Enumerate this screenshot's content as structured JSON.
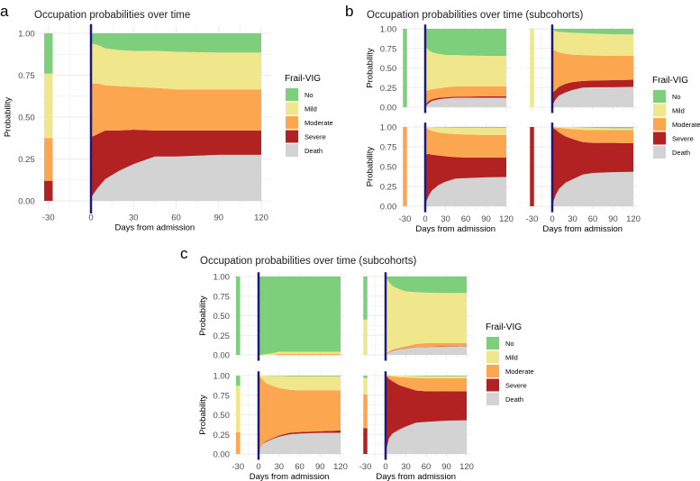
{
  "colors": {
    "No": "#7ecf7c",
    "Mild": "#f0e68c",
    "Moderate": "#fca650",
    "Severe": "#b22222",
    "Death": "#d3d3d3",
    "admission_line": "#1b1a7a",
    "grid": "#ebebeb"
  },
  "chart_data": [
    {
      "id": "a",
      "letter": "a",
      "type": "area",
      "title": "Occupation probabilities over time",
      "xlabel": "Days from admission",
      "ylabel": "Probability",
      "xticks": [
        -30,
        0,
        30,
        60,
        90,
        120
      ],
      "yticks": [
        "0.00",
        "0.25",
        "0.50",
        "0.75",
        "1.00"
      ],
      "xlim": [
        -37,
        127
      ],
      "ylim": [
        0,
        1
      ],
      "grid": true,
      "legend": {
        "title": "Frail-VIG",
        "entries": [
          "No",
          "Mild",
          "Moderate",
          "Severe",
          "Death"
        ],
        "position": "right"
      },
      "panels": [
        {
          "baseline_day": -30,
          "baseline": {
            "No": 0.24,
            "Mild": 0.385,
            "Moderate": 0.255,
            "Severe": 0.12,
            "Death": 0
          },
          "days": [
            0,
            5,
            10,
            20,
            30,
            45,
            60,
            90,
            120
          ],
          "cumulative_upper": {
            "Death": [
              0.02,
              0.08,
              0.13,
              0.18,
              0.22,
              0.265,
              0.265,
              0.275,
              0.275
            ],
            "Severe": [
              0.38,
              0.4,
              0.42,
              0.42,
              0.425,
              0.42,
              0.42,
              0.42,
              0.42
            ],
            "Moderate": [
              0.7,
              0.7,
              0.69,
              0.685,
              0.68,
              0.675,
              0.665,
              0.665,
              0.665
            ],
            "Mild": [
              0.94,
              0.93,
              0.91,
              0.9,
              0.895,
              0.895,
              0.89,
              0.885,
              0.885
            ]
          }
        }
      ]
    },
    {
      "id": "b",
      "letter": "b",
      "type": "area",
      "title": "Occupation probabilities over time (subcohorts)",
      "xlabel": "Days from admission",
      "ylabel": "Probability",
      "xticks": [
        -30,
        0,
        30,
        60,
        90,
        120
      ],
      "yticks": [
        "0.00",
        "0.25",
        "0.50",
        "0.75",
        "1.00"
      ],
      "xlim": [
        -37,
        127
      ],
      "ylim": [
        0,
        1
      ],
      "grid": true,
      "legend": {
        "title": "Frail-VIG",
        "entries": [
          "No",
          "Mild",
          "Moderate",
          "Severe",
          "Death"
        ],
        "position": "right"
      },
      "panels": [
        {
          "baseline_day": -30,
          "baseline": {
            "No": 1,
            "Mild": 0,
            "Moderate": 0,
            "Severe": 0,
            "Death": 0
          },
          "days": [
            0,
            5,
            10,
            20,
            30,
            45,
            60,
            90,
            120
          ],
          "cumulative_upper": {
            "Death": [
              0.01,
              0.05,
              0.08,
              0.1,
              0.11,
              0.12,
              0.12,
              0.12,
              0.12
            ],
            "Severe": [
              0.03,
              0.08,
              0.1,
              0.12,
              0.125,
              0.135,
              0.135,
              0.14,
              0.14
            ],
            "Moderate": [
              0.2,
              0.22,
              0.23,
              0.24,
              0.255,
              0.265,
              0.265,
              0.265,
              0.265
            ],
            "Mild": [
              0.77,
              0.73,
              0.7,
              0.68,
              0.665,
              0.665,
              0.66,
              0.655,
              0.655
            ]
          }
        },
        {
          "baseline_day": -30,
          "baseline": {
            "No": 0,
            "Mild": 1,
            "Moderate": 0,
            "Severe": 0,
            "Death": 0
          },
          "days": [
            0,
            5,
            10,
            20,
            30,
            45,
            60,
            90,
            120
          ],
          "cumulative_upper": {
            "Death": [
              0.02,
              0.1,
              0.15,
              0.19,
              0.22,
              0.25,
              0.255,
              0.255,
              0.26
            ],
            "Severe": [
              0.18,
              0.22,
              0.26,
              0.3,
              0.32,
              0.335,
              0.34,
              0.345,
              0.35
            ],
            "Moderate": [
              0.73,
              0.72,
              0.7,
              0.68,
              0.67,
              0.665,
              0.66,
              0.655,
              0.655
            ],
            "Mild": [
              0.99,
              0.97,
              0.96,
              0.955,
              0.95,
              0.945,
              0.94,
              0.93,
              0.93
            ]
          }
        },
        {
          "baseline_day": -30,
          "baseline": {
            "No": 0,
            "Mild": 0,
            "Moderate": 1,
            "Severe": 0,
            "Death": 0
          },
          "days": [
            0,
            5,
            10,
            20,
            30,
            45,
            60,
            90,
            120
          ],
          "cumulative_upper": {
            "Death": [
              0.03,
              0.13,
              0.2,
              0.27,
              0.31,
              0.35,
              0.355,
              0.365,
              0.37
            ],
            "Severe": [
              0.65,
              0.66,
              0.65,
              0.64,
              0.63,
              0.62,
              0.615,
              0.615,
              0.615
            ],
            "Moderate": [
              0.99,
              0.97,
              0.95,
              0.93,
              0.92,
              0.91,
              0.905,
              0.9,
              0.9
            ],
            "Mild": [
              1,
              1,
              1,
              0.995,
              0.995,
              0.99,
              0.99,
              0.99,
              0.99
            ]
          }
        },
        {
          "baseline_day": -30,
          "baseline": {
            "No": 0,
            "Mild": 0,
            "Moderate": 0,
            "Severe": 1,
            "Death": 0
          },
          "days": [
            0,
            5,
            10,
            20,
            30,
            45,
            60,
            90,
            120
          ],
          "cumulative_upper": {
            "Death": [
              0.02,
              0.14,
              0.22,
              0.3,
              0.34,
              0.4,
              0.42,
              0.43,
              0.435
            ],
            "Severe": [
              0.99,
              0.97,
              0.93,
              0.88,
              0.85,
              0.81,
              0.8,
              0.8,
              0.795
            ],
            "Moderate": [
              1,
              0.995,
              0.99,
              0.98,
              0.975,
              0.965,
              0.96,
              0.96,
              0.96
            ],
            "Mild": [
              1,
              1,
              1,
              1,
              1,
              0.995,
              0.99,
              0.985,
              0.985
            ]
          }
        }
      ]
    },
    {
      "id": "c",
      "letter": "c",
      "type": "area",
      "title": "Occupation probabilities over time (subcohorts)",
      "xlabel": "Days from admission",
      "ylabel": "Probability",
      "xticks": [
        -30,
        0,
        30,
        60,
        90,
        120
      ],
      "yticks": [
        "0.00",
        "0.25",
        "0.50",
        "0.75",
        "1.00"
      ],
      "xlim": [
        -37,
        127
      ],
      "ylim": [
        0,
        1
      ],
      "grid": true,
      "legend": {
        "title": "Frail-VIG",
        "entries": [
          "No",
          "Mild",
          "Moderate",
          "Severe",
          "Death"
        ],
        "position": "right"
      },
      "panels": [
        {
          "baseline_day": -30,
          "baseline": {
            "No": 1,
            "Mild": 0,
            "Moderate": 0,
            "Severe": 0,
            "Death": 0
          },
          "days": [
            0,
            5,
            10,
            20,
            30,
            45,
            60,
            90,
            120
          ],
          "cumulative_upper": {
            "Death": [
              0,
              0,
              0,
              0,
              0,
              0,
              0,
              0,
              0
            ],
            "Severe": [
              0,
              0,
              0,
              0,
              0,
              0,
              0,
              0,
              0
            ],
            "Moderate": [
              0,
              0,
              0,
              0,
              0.015,
              0.015,
              0.015,
              0.015,
              0.015
            ],
            "Mild": [
              0,
              0,
              0.01,
              0.02,
              0.04,
              0.04,
              0.04,
              0.04,
              0.04
            ]
          }
        },
        {
          "baseline_day": -30,
          "baseline": {
            "No": 0.55,
            "Mild": 0.45,
            "Moderate": 0,
            "Severe": 0,
            "Death": 0
          },
          "days": [
            0,
            5,
            10,
            20,
            30,
            45,
            60,
            90,
            120
          ],
          "cumulative_upper": {
            "Death": [
              0.01,
              0.03,
              0.05,
              0.07,
              0.08,
              0.1,
              0.1,
              0.105,
              0.11
            ],
            "Severe": [
              0.01,
              0.035,
              0.055,
              0.075,
              0.085,
              0.105,
              0.105,
              0.11,
              0.115
            ],
            "Moderate": [
              0.02,
              0.04,
              0.07,
              0.09,
              0.11,
              0.14,
              0.15,
              0.15,
              0.15
            ],
            "Mild": [
              1,
              0.93,
              0.88,
              0.84,
              0.81,
              0.8,
              0.795,
              0.79,
              0.79
            ]
          }
        },
        {
          "baseline_day": -30,
          "baseline": {
            "No": 0.13,
            "Mild": 0.59,
            "Moderate": 0.28,
            "Severe": 0,
            "Death": 0
          },
          "days": [
            0,
            5,
            10,
            20,
            30,
            45,
            60,
            90,
            120
          ],
          "cumulative_upper": {
            "Death": [
              0.03,
              0.11,
              0.15,
              0.19,
              0.22,
              0.25,
              0.26,
              0.27,
              0.27
            ],
            "Severe": [
              0.03,
              0.11,
              0.16,
              0.2,
              0.235,
              0.27,
              0.28,
              0.29,
              0.3
            ],
            "Moderate": [
              1,
              0.96,
              0.91,
              0.87,
              0.84,
              0.82,
              0.81,
              0.81,
              0.81
            ],
            "Mild": [
              1,
              1,
              1,
              0.995,
              0.995,
              0.99,
              0.99,
              0.99,
              0.99
            ]
          }
        },
        {
          "baseline_day": -30,
          "baseline": {
            "No": 0.03,
            "Mild": 0.21,
            "Moderate": 0.43,
            "Severe": 0.33,
            "Death": 0
          },
          "days": [
            0,
            5,
            10,
            20,
            30,
            45,
            60,
            90,
            120
          ],
          "cumulative_upper": {
            "Death": [
              0.02,
              0.2,
              0.26,
              0.31,
              0.35,
              0.4,
              0.41,
              0.425,
              0.43
            ],
            "Severe": [
              1,
              0.96,
              0.93,
              0.88,
              0.85,
              0.81,
              0.8,
              0.8,
              0.8
            ],
            "Moderate": [
              1,
              1,
              0.99,
              0.98,
              0.975,
              0.97,
              0.965,
              0.965,
              0.965
            ],
            "Mild": [
              1,
              1,
              1,
              1,
              1,
              0.995,
              0.99,
              0.99,
              0.99
            ]
          }
        }
      ]
    }
  ]
}
